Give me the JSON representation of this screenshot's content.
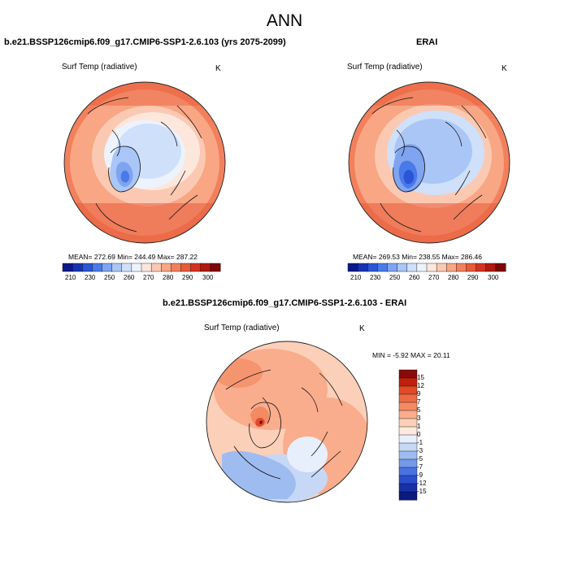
{
  "page": {
    "title": "ANN"
  },
  "panels": [
    {
      "title": "b.e21.BSSP126cmip6.f09_g17.CMIP6-SSP1-2.6.103 (yrs 2075-2099)",
      "variable": "Surf Temp (radiative)",
      "units": "K",
      "stats": "MEAN= 272.69  Min= 244.49  Max= 287.22"
    },
    {
      "title": "ERAI",
      "variable": "Surf Temp (radiative)",
      "units": "K",
      "stats": "MEAN= 269.53  Min= 238.55  Max= 286.46"
    },
    {
      "title": "b.e21.BSSP126cmip6.f09_g17.CMIP6-SSP1-2.6.103 - ERAI",
      "variable": "Surf Temp (radiative)",
      "units": "K",
      "stats": "MIN =  -5.92 MAX =  20.11"
    }
  ],
  "colorbar_abs": {
    "labels": [
      "210",
      "230",
      "250",
      "260",
      "270",
      "280",
      "290",
      "300"
    ],
    "colors": [
      "#0a1a8c",
      "#1434b4",
      "#2a55d8",
      "#4a7ae8",
      "#7fa4f0",
      "#aac6f6",
      "#cfe0fa",
      "#ecf3fd",
      "#fde6dc",
      "#fbc9b2",
      "#f8a684",
      "#f2805c",
      "#e85a3a",
      "#d43220",
      "#b01a10",
      "#7e0606"
    ]
  },
  "colorbar_diff": {
    "labels": [
      "15",
      "12",
      "9",
      "7",
      "5",
      "3",
      "1",
      "0",
      "-1",
      "-3",
      "-5",
      "-7",
      "-9",
      "-12",
      "-15"
    ],
    "colors": [
      "#8a0a0a",
      "#c0200e",
      "#e04a28",
      "#ee6a44",
      "#f48a64",
      "#f9ad8c",
      "#fcd0b8",
      "#fde9dd",
      "#e6effb",
      "#c6d8f6",
      "#9fbcf1",
      "#7499ea",
      "#4a72e0",
      "#2a4dcc",
      "#1630a8",
      "#0a1a80"
    ]
  },
  "icons": {
    "map_left": "polar-stereographic-map",
    "map_right": "polar-stereographic-map",
    "map_diff": "polar-stereographic-map"
  }
}
